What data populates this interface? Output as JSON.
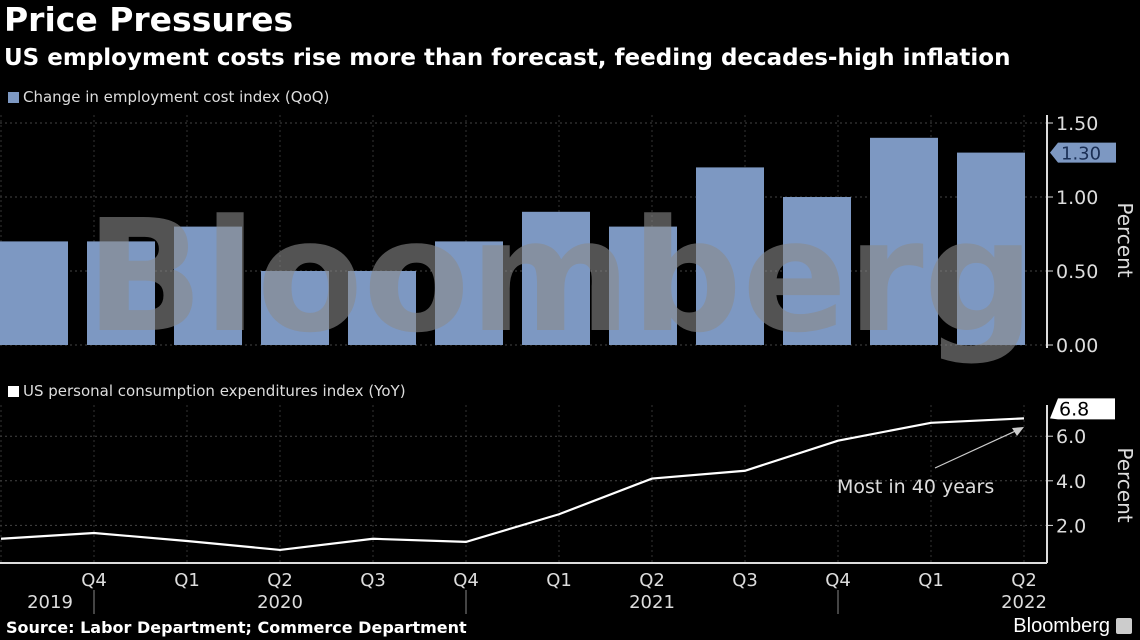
{
  "title": "Price Pressures",
  "subtitle": "US employment costs rise more than forecast, feeding decades-high inflation",
  "source": "Source: Labor Department; Commerce Department",
  "brand": "Bloomberg",
  "watermark": "Bloomberg",
  "x_ticks": [
    {
      "q": "",
      "year": ""
    },
    {
      "q": "Q4",
      "year": "2019"
    },
    {
      "q": "Q1",
      "year": ""
    },
    {
      "q": "Q2",
      "year": "2020"
    },
    {
      "q": "Q3",
      "year": ""
    },
    {
      "q": "Q4",
      "year": ""
    },
    {
      "q": "Q1",
      "year": ""
    },
    {
      "q": "Q2",
      "year": "2021"
    },
    {
      "q": "Q3",
      "year": ""
    },
    {
      "q": "Q4",
      "year": ""
    },
    {
      "q": "Q1",
      "year": ""
    },
    {
      "q": "Q2",
      "year": "2022"
    }
  ],
  "chart_data": [
    {
      "type": "bar",
      "legend": "Change in employment cost index (QoQ)",
      "ylabel": "Percent",
      "ylim": [
        0,
        1.5
      ],
      "yticks": [
        "0.00",
        "0.50",
        "1.00",
        "1.50"
      ],
      "categories": [
        "2019 Q3",
        "2019 Q4",
        "2020 Q1",
        "2020 Q2",
        "2020 Q3",
        "2020 Q4",
        "2021 Q1",
        "2021 Q2",
        "2021 Q3",
        "2021 Q4",
        "2022 Q1",
        "2022 Q2"
      ],
      "values": [
        0.7,
        0.7,
        0.8,
        0.5,
        0.5,
        0.7,
        0.9,
        0.8,
        1.2,
        1.0,
        1.4,
        1.3
      ],
      "last_label": "1.30",
      "color": "#7d98c2",
      "grid": true
    },
    {
      "type": "line",
      "legend": "US personal consumption expenditures index (YoY)",
      "ylabel": "Percent",
      "ylim": [
        0.3,
        7.0
      ],
      "yticks": [
        "2.0",
        "4.0",
        "6.0"
      ],
      "categories": [
        "2019 Q3",
        "2019 Q4",
        "2020 Q1",
        "2020 Q2",
        "2020 Q3",
        "2020 Q4",
        "2021 Q1",
        "2021 Q2",
        "2021 Q3",
        "2021 Q4",
        "2022 Q1",
        "2022 Q2"
      ],
      "values": [
        1.4,
        1.66,
        1.3,
        0.9,
        1.4,
        1.26,
        2.5,
        4.1,
        4.45,
        5.8,
        6.6,
        6.8
      ],
      "last_label": "6.8",
      "annotation": "Most in 40 years",
      "color": "#ffffff",
      "grid": true
    }
  ]
}
